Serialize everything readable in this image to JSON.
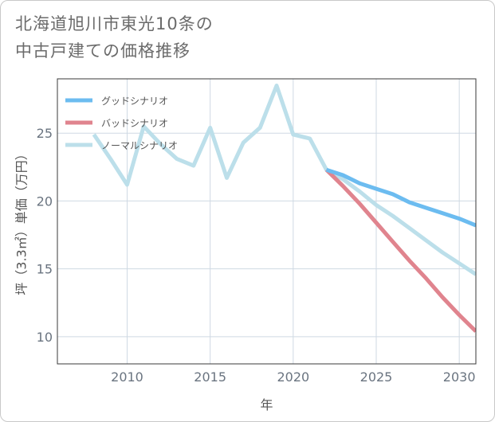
{
  "title": {
    "line1": "北海道旭川市東光10条の",
    "line2": "中古戸建ての価格推移"
  },
  "colors": {
    "good": "#6cbcf0",
    "bad": "#e0848e",
    "normal": "#bcdfea",
    "grid": "#cfd9e3",
    "plot_border": "#3a3a3a"
  },
  "chart_data": {
    "type": "line",
    "xlabel": "年",
    "ylabel": "坪（3.3㎡）単価（万円）",
    "xlim": [
      2005.8,
      2031
    ],
    "ylim": [
      8.0,
      29.0
    ],
    "x_ticks": [
      2010,
      2015,
      2020,
      2025,
      2030
    ],
    "y_ticks": [
      10,
      15,
      20,
      25
    ],
    "legend_position": "top-left",
    "series": [
      {
        "name": "グッドシナリオ",
        "color_key": "good",
        "points": [
          [
            2022,
            22.3
          ],
          [
            2023,
            21.9
          ],
          [
            2024,
            21.3
          ],
          [
            2025,
            20.9
          ],
          [
            2026,
            20.5
          ],
          [
            2027,
            19.9
          ],
          [
            2028,
            19.5
          ],
          [
            2029,
            19.1
          ],
          [
            2030,
            18.7
          ],
          [
            2031,
            18.2
          ]
        ]
      },
      {
        "name": "バッドシナリオ",
        "color_key": "bad",
        "points": [
          [
            2022,
            22.3
          ],
          [
            2023,
            21.1
          ],
          [
            2024,
            19.8
          ],
          [
            2025,
            18.4
          ],
          [
            2026,
            17.0
          ],
          [
            2027,
            15.6
          ],
          [
            2028,
            14.3
          ],
          [
            2029,
            12.9
          ],
          [
            2030,
            11.6
          ],
          [
            2031,
            10.4
          ]
        ]
      },
      {
        "name": "ノーマルシナリオ",
        "color_key": "normal",
        "points": [
          [
            2008,
            24.9
          ],
          [
            2009,
            23.1
          ],
          [
            2010,
            21.2
          ],
          [
            2011,
            25.5
          ],
          [
            2012,
            24.2
          ],
          [
            2013,
            23.1
          ],
          [
            2014,
            22.6
          ],
          [
            2015,
            25.4
          ],
          [
            2016,
            21.7
          ],
          [
            2017,
            24.3
          ],
          [
            2018,
            25.4
          ],
          [
            2019,
            28.5
          ],
          [
            2020,
            24.9
          ],
          [
            2021,
            24.6
          ],
          [
            2022,
            22.3
          ],
          [
            2023,
            21.6
          ],
          [
            2024,
            20.7
          ],
          [
            2025,
            19.7
          ],
          [
            2026,
            18.9
          ],
          [
            2027,
            18.0
          ],
          [
            2028,
            17.1
          ],
          [
            2029,
            16.2
          ],
          [
            2030,
            15.4
          ],
          [
            2031,
            14.6
          ]
        ]
      }
    ]
  }
}
